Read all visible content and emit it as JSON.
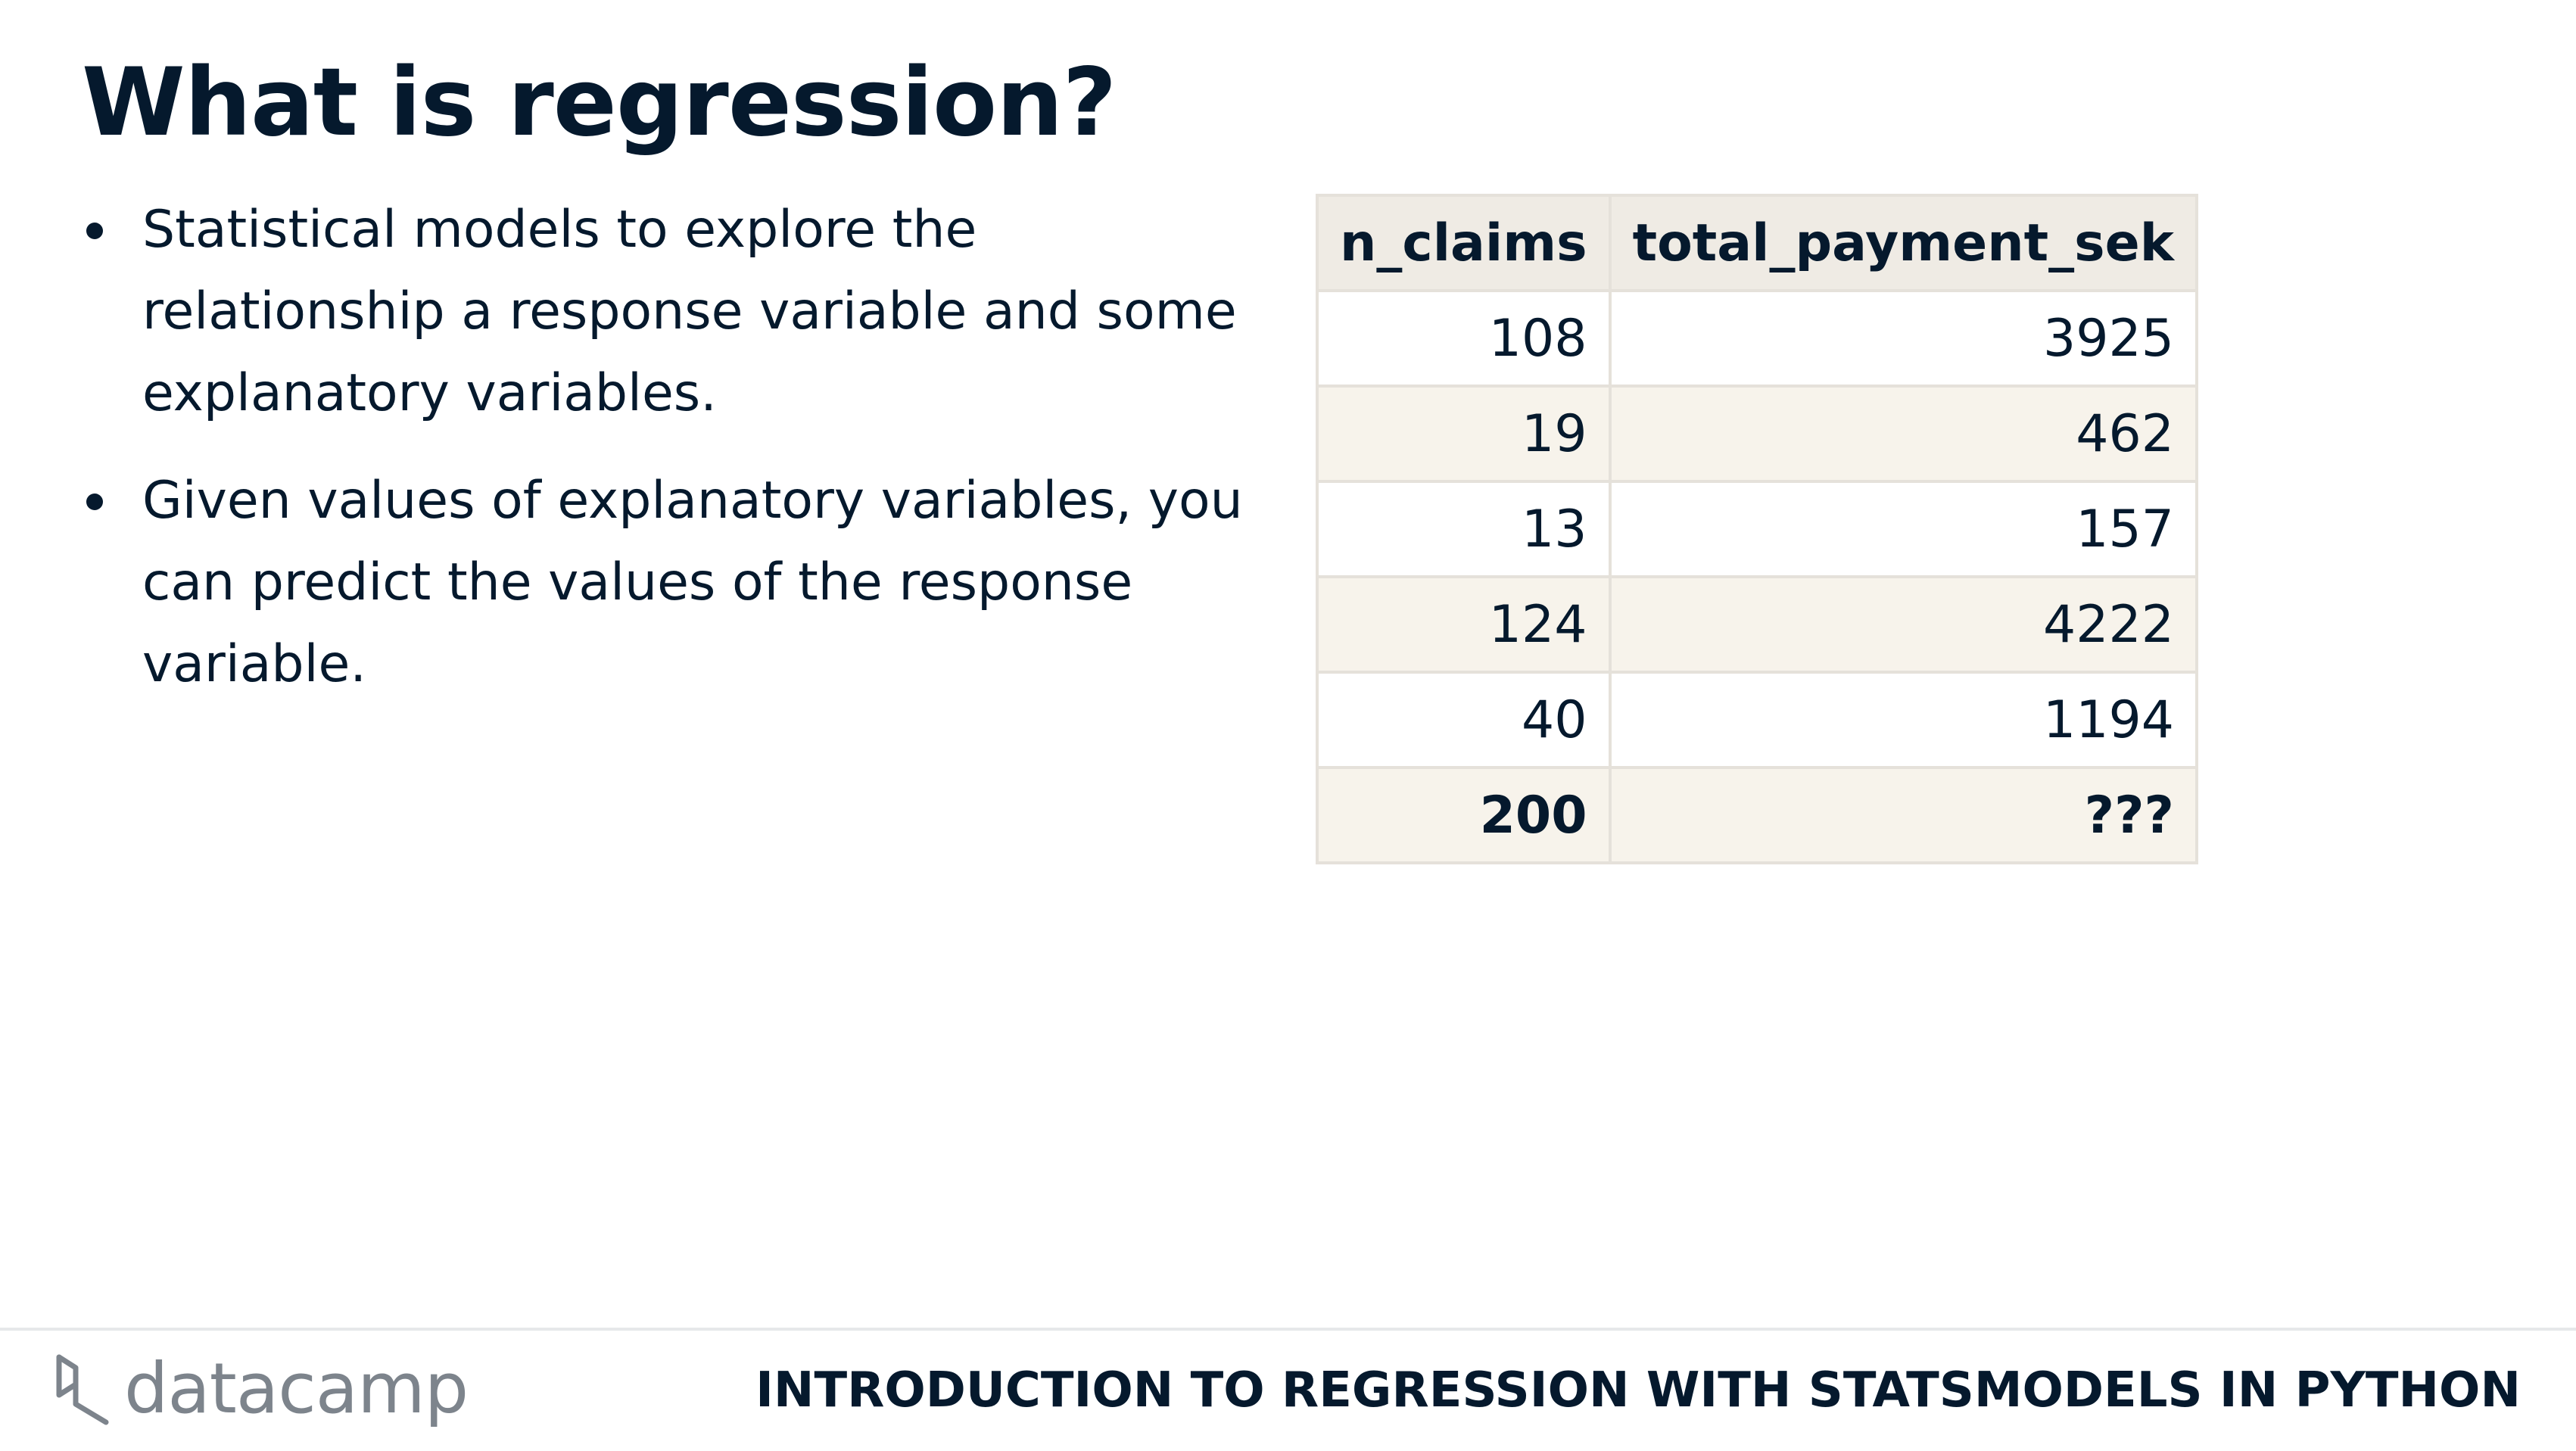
{
  "slide": {
    "title": "What is regression?",
    "bullets": [
      "Statistical models to explore the relationship a response variable and some explanatory variables.",
      "Given values of explanatory variables, you can predict the values of the response variable."
    ]
  },
  "table": {
    "headers": [
      "n_claims",
      "total_payment_sek"
    ],
    "rows": [
      [
        "108",
        "3925"
      ],
      [
        "19",
        "462"
      ],
      [
        "13",
        "157"
      ],
      [
        "124",
        "4222"
      ],
      [
        "40",
        "1194"
      ],
      [
        "200",
        "???"
      ]
    ]
  },
  "footer": {
    "logo_text": "datacamp",
    "logo_icon": "datacamp-logo-icon",
    "course_title": "INTRODUCTION TO REGRESSION WITH STATSMODELS IN PYTHON"
  },
  "colors": {
    "text": "#05192d",
    "header_bg": "#efebe4",
    "stripe_bg": "#f7f3eb",
    "border": "#e5e1da",
    "logo": "#7d848c"
  }
}
